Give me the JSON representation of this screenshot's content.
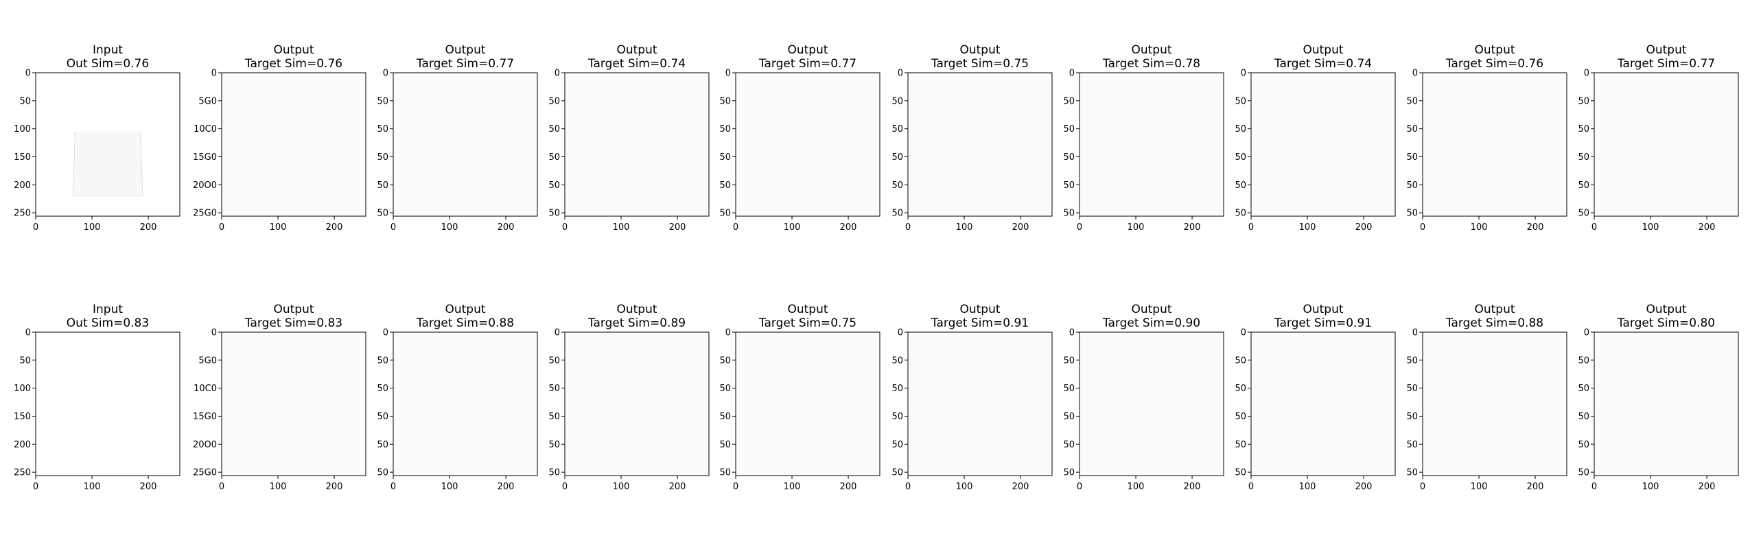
{
  "figure": {
    "rows": [
      {
        "panels": [
          {
            "kind": "input",
            "title_line1": "Input",
            "title_line2": "Out Sim=0.76",
            "shirt": {
              "style": "polo",
              "body_color": "#f8f8f8",
              "neck_color": "#e4e4e4"
            }
          },
          {
            "kind": "output",
            "title_line1": "Output",
            "title_line2": "Target Sim=0.76",
            "shirt": {
              "style": "tee",
              "body_color": "#f4f4f6",
              "neck_color": "#bdbdbd"
            }
          },
          {
            "kind": "output",
            "title_line1": "Output",
            "title_line2": "Target Sim=0.77",
            "shirt": {
              "style": "tee",
              "body_color": "#f6f6f8",
              "neck_color": "#c4c4c4"
            }
          },
          {
            "kind": "output",
            "title_line1": "Output",
            "title_line2": "Target Sim=0.74",
            "shirt": {
              "style": "tee",
              "body_color": "#f3f3f6",
              "neck_color": "#c6c6ca"
            }
          },
          {
            "kind": "output",
            "title_line1": "Output",
            "title_line2": "Target Sim=0.77",
            "shirt": {
              "style": "tee",
              "body_color": "#f4f2f6",
              "neck_color": "#c2c0c6"
            }
          },
          {
            "kind": "output",
            "title_line1": "Output",
            "title_line2": "Target Sim=0.75",
            "shirt": {
              "style": "tee",
              "body_color": "#f4f2ee",
              "neck_color": "#c8c6c2"
            }
          },
          {
            "kind": "output",
            "title_line1": "Output",
            "title_line2": "Target Sim=0.78",
            "shirt": {
              "style": "tee",
              "body_color": "#f4f4f6",
              "neck_color": "#c4c6cc"
            }
          },
          {
            "kind": "output",
            "title_line1": "Output",
            "title_line2": "Target Sim=0.74",
            "shirt": {
              "style": "tee",
              "body_color": "#f3f4f8",
              "neck_color": "#b8bcc8"
            }
          },
          {
            "kind": "output",
            "title_line1": "Output",
            "title_line2": "Target Sim=0.76",
            "shirt": {
              "style": "tee",
              "body_color": "#f4f5f7",
              "neck_color": "#c2c4c8"
            }
          },
          {
            "kind": "output",
            "title_line1": "Output",
            "title_line2": "Target Sim=0.77",
            "shirt": {
              "style": "tee",
              "body_color": "#f6f7f7",
              "neck_color": "#c8cac8"
            }
          }
        ]
      },
      {
        "panels": [
          {
            "kind": "input",
            "title_line1": "Input",
            "title_line2": "Out Sim=0.83",
            "shirt": {
              "style": "vtank",
              "body_color": "#40dcc4",
              "neck_color": "#1e7a62"
            }
          },
          {
            "kind": "output",
            "title_line1": "Output",
            "title_line2": "Target Sim=0.83",
            "shirt": {
              "style": "tank",
              "body_color": "#3a8fe2",
              "neck_color": "#2f73c8"
            }
          },
          {
            "kind": "output",
            "title_line1": "Output",
            "title_line2": "Target Sim=0.88",
            "shirt": {
              "style": "tank",
              "body_color": "#3c95d8",
              "neck_color": "#2b6fa8"
            }
          },
          {
            "kind": "output",
            "title_line1": "Output",
            "title_line2": "Target Sim=0.89",
            "shirt": {
              "style": "tank",
              "body_color": "#3a9cd8",
              "neck_color": "#2c7ab0"
            }
          },
          {
            "kind": "output",
            "title_line1": "Output",
            "title_line2": "Target Sim=0.75",
            "shirt": {
              "style": "dark",
              "body_color": "#3a3f94",
              "neck_color": "#8f96c4"
            }
          },
          {
            "kind": "output",
            "title_line1": "Output",
            "title_line2": "Target Sim=0.91",
            "shirt": {
              "style": "tank",
              "body_color": "#3fc6d4",
              "neck_color": "#2ea6b8"
            }
          },
          {
            "kind": "output",
            "title_line1": "Output",
            "title_line2": "Target Sim=0.90",
            "shirt": {
              "style": "tank",
              "body_color": "#2fcfb6",
              "neck_color": "#1faf98"
            }
          },
          {
            "kind": "output",
            "title_line1": "Output",
            "title_line2": "Target Sim=0.91",
            "shirt": {
              "style": "tank",
              "body_color": "#36c4da",
              "neck_color": "#2aa0c0"
            }
          },
          {
            "kind": "output",
            "title_line1": "Output",
            "title_line2": "Target Sim=0.88",
            "shirt": {
              "style": "tank",
              "body_color": "#22a88e",
              "neck_color": "#17806a"
            }
          },
          {
            "kind": "output",
            "title_line1": "Output",
            "title_line2": "Target Sim=0.80",
            "shirt": {
              "style": "tee",
              "body_color": "#93a6ee",
              "neck_color": "#7d92e2"
            }
          }
        ]
      }
    ],
    "axes": {
      "x_ticks": [
        "0",
        "100",
        "200"
      ],
      "x_tick_values": [
        0,
        100,
        200
      ],
      "y_ticks_input": [
        "0",
        "50",
        "100",
        "150",
        "200",
        "250"
      ],
      "y_ticks_output_first": [
        "0",
        "5G0",
        "10C0",
        "15G0",
        "20O0",
        "25G0"
      ],
      "y_ticks_output_other": [
        "0",
        "50",
        "50",
        "50",
        "50",
        "50"
      ],
      "y_tick_values": [
        0,
        50,
        100,
        150,
        200,
        250
      ],
      "image_range": [
        0,
        256
      ]
    }
  }
}
